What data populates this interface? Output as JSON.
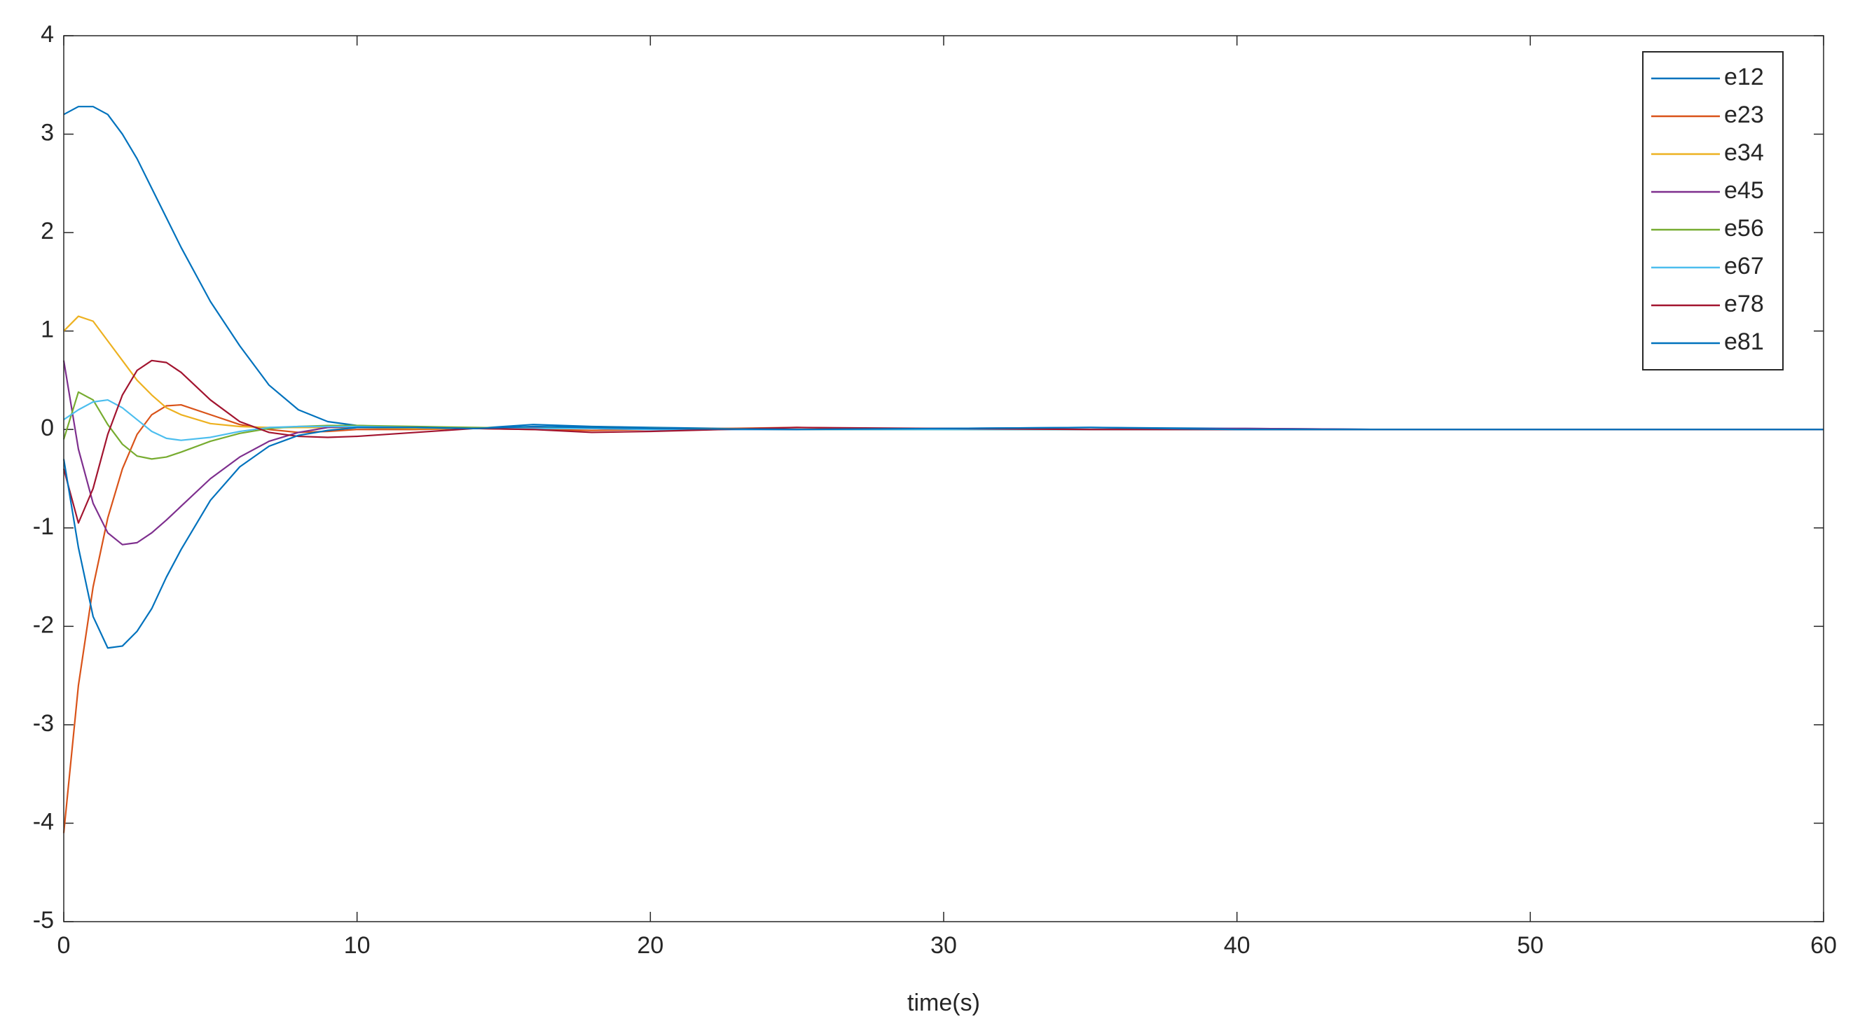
{
  "chart_data": {
    "type": "line",
    "x_label": "time(s)",
    "x": [
      0,
      0.5,
      1,
      1.5,
      2,
      2.5,
      3,
      3.5,
      4,
      5,
      6,
      7,
      8,
      9,
      10,
      12,
      14,
      16,
      18,
      20,
      25,
      30,
      35,
      40,
      45,
      50,
      55,
      60
    ],
    "series": [
      {
        "name": "e12",
        "color": "#0072BD",
        "values": [
          3.2,
          3.28,
          3.28,
          3.2,
          3.0,
          2.75,
          2.45,
          2.15,
          1.85,
          1.3,
          0.85,
          0.45,
          0.2,
          0.08,
          0.04,
          0.02,
          0.01,
          0.05,
          0.03,
          0.02,
          0,
          0.01,
          0.02,
          0.01,
          0,
          0,
          0,
          0
        ]
      },
      {
        "name": "e23",
        "color": "#D95319",
        "values": [
          -4.1,
          -2.6,
          -1.6,
          -0.9,
          -0.4,
          -0.05,
          0.15,
          0.24,
          0.25,
          0.15,
          0.05,
          0,
          -0.03,
          -0.02,
          0,
          0,
          0.01,
          0,
          -0.01,
          0,
          0.02,
          0,
          0,
          0,
          0,
          0,
          0,
          0
        ]
      },
      {
        "name": "e34",
        "color": "#EDB120",
        "values": [
          1.0,
          1.15,
          1.1,
          0.9,
          0.7,
          0.5,
          0.35,
          0.22,
          0.15,
          0.06,
          0.03,
          0.02,
          0.02,
          0.02,
          0.02,
          0.01,
          0.01,
          0.02,
          0.01,
          0.01,
          0,
          0,
          0,
          0,
          0,
          0,
          0,
          0
        ]
      },
      {
        "name": "e45",
        "color": "#7E2F8E",
        "values": [
          0.7,
          -0.2,
          -0.75,
          -1.05,
          -1.17,
          -1.15,
          -1.05,
          -0.92,
          -0.78,
          -0.5,
          -0.28,
          -0.12,
          -0.03,
          0.02,
          0.03,
          0.02,
          0.01,
          0.02,
          0.01,
          0,
          0,
          0.01,
          0,
          0.01,
          0,
          0,
          0,
          0
        ]
      },
      {
        "name": "e56",
        "color": "#77AC30",
        "values": [
          -0.1,
          0.38,
          0.3,
          0.05,
          -0.15,
          -0.27,
          -0.3,
          -0.28,
          -0.23,
          -0.12,
          -0.04,
          0.01,
          0.03,
          0.04,
          0.04,
          0.03,
          0.02,
          0.01,
          0.02,
          0.01,
          0,
          0,
          0,
          0,
          0,
          0,
          0,
          0
        ]
      },
      {
        "name": "e67",
        "color": "#4DBEEE",
        "values": [
          0.1,
          0.2,
          0.28,
          0.3,
          0.22,
          0.1,
          -0.02,
          -0.09,
          -0.11,
          -0.08,
          -0.02,
          0.02,
          0.03,
          0.03,
          0.03,
          0.02,
          0.01,
          0.01,
          0.01,
          0,
          0,
          0,
          0,
          0,
          0,
          0,
          0,
          0
        ]
      },
      {
        "name": "e78",
        "color": "#A2142F",
        "values": [
          -0.4,
          -0.95,
          -0.6,
          -0.05,
          0.35,
          0.6,
          0.7,
          0.68,
          0.58,
          0.3,
          0.08,
          -0.03,
          -0.07,
          -0.08,
          -0.07,
          -0.03,
          0.01,
          0,
          -0.03,
          -0.02,
          0.02,
          0.01,
          0,
          0,
          0,
          0,
          0,
          0
        ]
      },
      {
        "name": "e81",
        "color": "#0072BD",
        "values": [
          -0.3,
          -1.2,
          -1.9,
          -2.22,
          -2.2,
          -2.05,
          -1.82,
          -1.5,
          -1.22,
          -0.72,
          -0.38,
          -0.17,
          -0.06,
          -0.01,
          0.02,
          0.02,
          0.01,
          0.03,
          0.02,
          0.01,
          0,
          0.01,
          0.02,
          0,
          0,
          0,
          0,
          0
        ]
      }
    ],
    "xlim": [
      0,
      60
    ],
    "xticks": [
      0,
      10,
      20,
      30,
      40,
      50,
      60
    ],
    "ylim": [
      -5,
      4
    ],
    "yticks": [
      -5,
      -4,
      -3,
      -2,
      -1,
      0,
      1,
      2,
      3,
      4
    ],
    "grid": false,
    "legend_position": "top-right"
  }
}
